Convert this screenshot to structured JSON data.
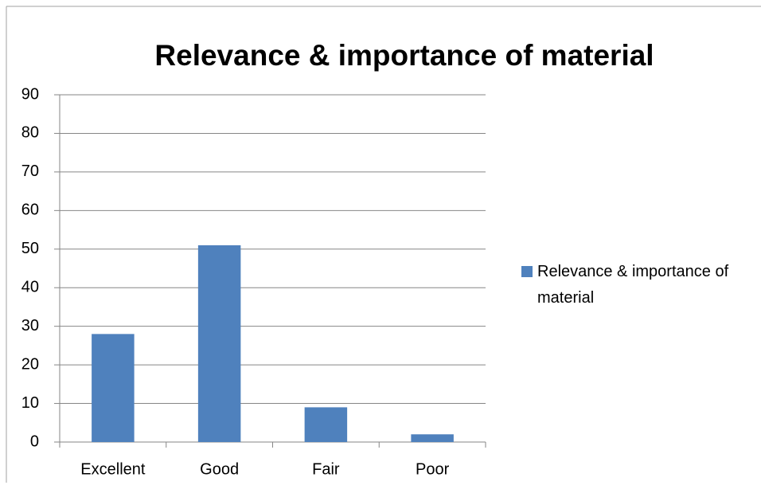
{
  "chart_data": {
    "type": "bar",
    "title": "Relevance & importance of material",
    "categories": [
      "Excellent",
      "Good",
      "Fair",
      "Poor"
    ],
    "series": [
      {
        "name": "Relevance & importance of material",
        "color": "#4f81bd",
        "values": [
          28,
          51,
          9,
          2
        ]
      }
    ],
    "ylim": [
      0,
      90
    ],
    "yticks": [
      0,
      10,
      20,
      30,
      40,
      50,
      60,
      70,
      80,
      90
    ],
    "grid": true,
    "legend": "right"
  }
}
